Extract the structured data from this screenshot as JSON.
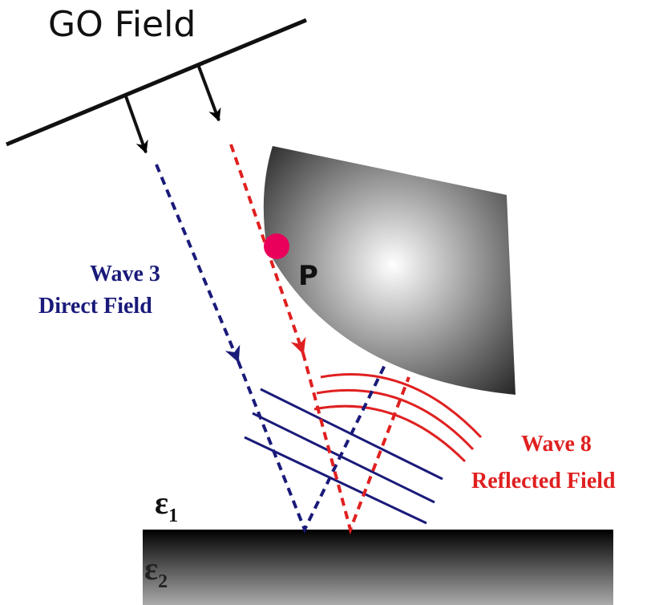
{
  "title": "GO Field",
  "point_label": "P",
  "wave3": {
    "name": "Wave 3",
    "description": "Direct Field"
  },
  "wave8": {
    "name": "Wave 8",
    "description": "Reflected Field"
  },
  "media": [
    {
      "symbol": "ε",
      "subscript": "1"
    },
    {
      "symbol": "ε",
      "subscript": "2"
    }
  ]
}
